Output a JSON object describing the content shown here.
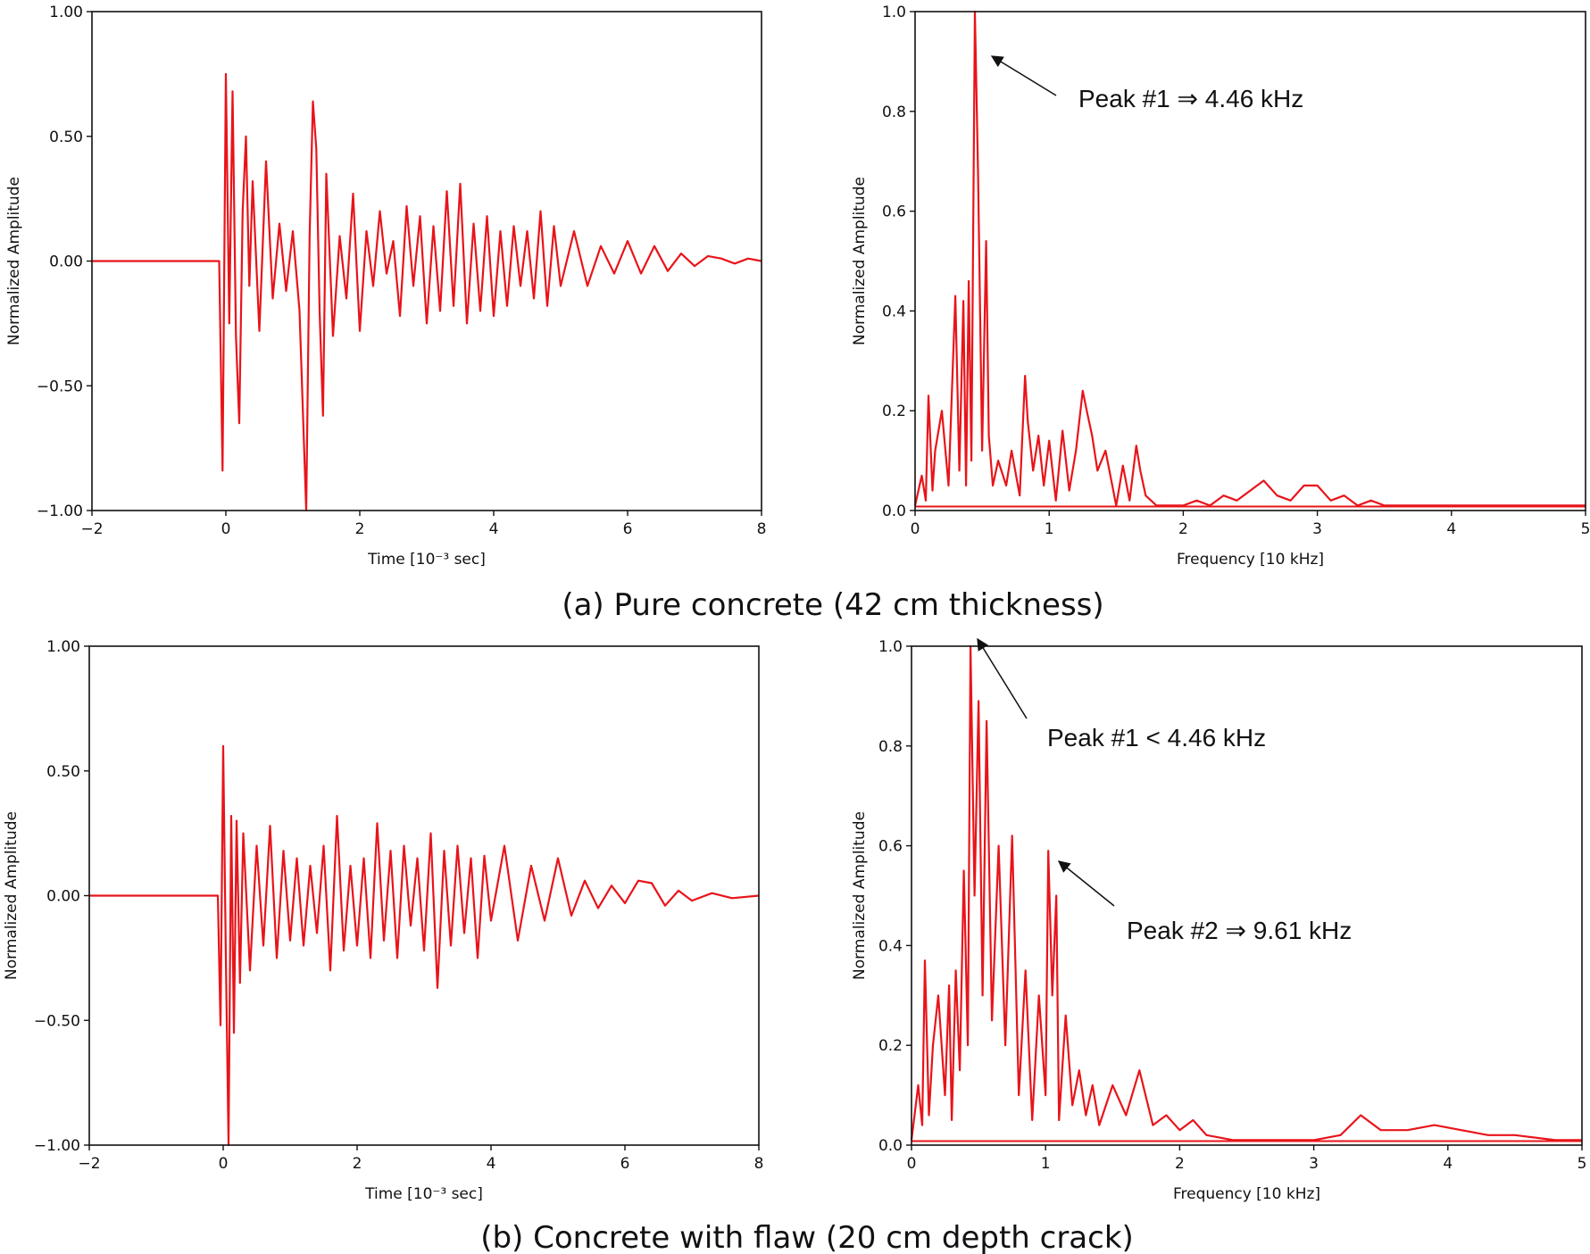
{
  "figure": {
    "caption_a": "(a) Pure concrete (42 cm thickness)",
    "caption_b": "(b) Concrete with flaw (20 cm depth crack)"
  },
  "chart_data": [
    {
      "id": "a-time",
      "type": "line",
      "xlabel": "Time [10⁻³ sec]",
      "ylabel": "Normalized Amplitude",
      "xlim": [
        -2,
        8
      ],
      "ylim": [
        -1.0,
        1.0
      ],
      "xticks": [
        -2,
        0,
        2,
        4,
        6,
        8
      ],
      "xtick_labels": [
        "−2",
        "0",
        "2",
        "4",
        "6",
        "8"
      ],
      "yticks": [
        -1.0,
        -0.5,
        0.0,
        0.5,
        1.0
      ],
      "ytick_labels": [
        "−1.00",
        "−0.50",
        "0.00",
        "0.50",
        "1.00"
      ],
      "series": [
        {
          "name": "signal",
          "color": "#e8141a",
          "x": [
            -2.0,
            -0.1,
            -0.05,
            0.0,
            0.05,
            0.1,
            0.15,
            0.2,
            0.25,
            0.3,
            0.35,
            0.4,
            0.5,
            0.6,
            0.7,
            0.8,
            0.9,
            1.0,
            1.1,
            1.2,
            1.25,
            1.3,
            1.35,
            1.4,
            1.45,
            1.5,
            1.6,
            1.7,
            1.8,
            1.9,
            2.0,
            2.1,
            2.2,
            2.3,
            2.4,
            2.5,
            2.6,
            2.7,
            2.8,
            2.9,
            3.0,
            3.1,
            3.2,
            3.3,
            3.4,
            3.5,
            3.6,
            3.7,
            3.8,
            3.9,
            4.0,
            4.1,
            4.2,
            4.3,
            4.4,
            4.5,
            4.6,
            4.7,
            4.8,
            4.9,
            5.0,
            5.2,
            5.4,
            5.6,
            5.8,
            6.0,
            6.2,
            6.4,
            6.6,
            6.8,
            7.0,
            7.2,
            7.4,
            7.6,
            7.8,
            8.0
          ],
          "values": [
            0.0,
            0.0,
            -0.84,
            0.75,
            -0.25,
            0.68,
            -0.3,
            -0.65,
            0.2,
            0.5,
            -0.1,
            0.32,
            -0.28,
            0.4,
            -0.15,
            0.15,
            -0.12,
            0.12,
            -0.2,
            -1.0,
            0.1,
            0.64,
            0.45,
            -0.2,
            -0.62,
            0.35,
            -0.3,
            0.1,
            -0.15,
            0.27,
            -0.28,
            0.12,
            -0.1,
            0.2,
            -0.05,
            0.08,
            -0.22,
            0.22,
            -0.1,
            0.18,
            -0.25,
            0.14,
            -0.2,
            0.28,
            -0.18,
            0.31,
            -0.25,
            0.15,
            -0.2,
            0.18,
            -0.22,
            0.12,
            -0.18,
            0.14,
            -0.1,
            0.12,
            -0.15,
            0.2,
            -0.18,
            0.14,
            -0.1,
            0.12,
            -0.1,
            0.06,
            -0.05,
            0.08,
            -0.05,
            0.06,
            -0.04,
            0.03,
            -0.02,
            0.02,
            0.01,
            -0.01,
            0.01,
            0.0
          ]
        }
      ]
    },
    {
      "id": "a-freq",
      "type": "line",
      "xlabel": "Frequency [10 kHz]",
      "ylabel": "Normalized Amplitude",
      "xlim": [
        0,
        5
      ],
      "ylim": [
        0.0,
        1.0
      ],
      "xticks": [
        0,
        1,
        2,
        3,
        4,
        5
      ],
      "xtick_labels": [
        "0",
        "1",
        "2",
        "3",
        "4",
        "5"
      ],
      "yticks": [
        0.0,
        0.2,
        0.4,
        0.6,
        0.8,
        1.0
      ],
      "ytick_labels": [
        "0.0",
        "0.2",
        "0.4",
        "0.6",
        "0.8",
        "1.0"
      ],
      "annotations": [
        {
          "text": "Peak #1 ⇒ 4.46 kHz",
          "x": 0.446,
          "y": 1.0
        }
      ],
      "series": [
        {
          "name": "spectrum",
          "color": "#e8141a",
          "x": [
            0.0,
            0.05,
            0.08,
            0.1,
            0.13,
            0.15,
            0.2,
            0.25,
            0.3,
            0.33,
            0.36,
            0.38,
            0.4,
            0.42,
            0.446,
            0.47,
            0.5,
            0.53,
            0.55,
            0.58,
            0.62,
            0.68,
            0.72,
            0.78,
            0.82,
            0.84,
            0.88,
            0.92,
            0.96,
            1.0,
            1.05,
            1.1,
            1.15,
            1.2,
            1.25,
            1.28,
            1.32,
            1.36,
            1.42,
            1.5,
            1.55,
            1.6,
            1.65,
            1.68,
            1.72,
            1.8,
            1.9,
            2.0,
            2.1,
            2.2,
            2.3,
            2.4,
            2.5,
            2.6,
            2.7,
            2.8,
            2.9,
            3.0,
            3.1,
            3.2,
            3.3,
            3.4,
            3.5,
            3.7,
            3.9,
            4.1,
            4.3,
            4.5,
            4.7,
            5.0
          ],
          "values": [
            0.01,
            0.07,
            0.02,
            0.23,
            0.04,
            0.12,
            0.2,
            0.05,
            0.43,
            0.08,
            0.42,
            0.05,
            0.46,
            0.1,
            1.0,
            0.67,
            0.12,
            0.54,
            0.15,
            0.05,
            0.1,
            0.05,
            0.12,
            0.03,
            0.27,
            0.18,
            0.08,
            0.15,
            0.05,
            0.14,
            0.02,
            0.16,
            0.04,
            0.12,
            0.24,
            0.2,
            0.15,
            0.08,
            0.12,
            0.01,
            0.09,
            0.02,
            0.13,
            0.08,
            0.03,
            0.01,
            0.01,
            0.01,
            0.02,
            0.01,
            0.03,
            0.02,
            0.04,
            0.06,
            0.03,
            0.02,
            0.05,
            0.05,
            0.02,
            0.03,
            0.01,
            0.02,
            0.01,
            0.01,
            0.01,
            0.01,
            0.01,
            0.01,
            0.01,
            0.01
          ]
        }
      ]
    },
    {
      "id": "b-time",
      "type": "line",
      "xlabel": "Time [10⁻³ sec]",
      "ylabel": "Normalized Amplitude",
      "xlim": [
        -2,
        8
      ],
      "ylim": [
        -1.0,
        1.0
      ],
      "xticks": [
        -2,
        0,
        2,
        4,
        6,
        8
      ],
      "xtick_labels": [
        "−2",
        "0",
        "2",
        "4",
        "6",
        "8"
      ],
      "yticks": [
        -1.0,
        -0.5,
        0.0,
        0.5,
        1.0
      ],
      "ytick_labels": [
        "−1.00",
        "−0.50",
        "0.00",
        "0.50",
        "1.00"
      ],
      "series": [
        {
          "name": "signal",
          "color": "#e8141a",
          "x": [
            -2.0,
            -0.08,
            -0.04,
            0.0,
            0.04,
            0.08,
            0.12,
            0.16,
            0.2,
            0.25,
            0.3,
            0.4,
            0.5,
            0.6,
            0.7,
            0.8,
            0.9,
            1.0,
            1.1,
            1.2,
            1.3,
            1.4,
            1.5,
            1.6,
            1.7,
            1.8,
            1.9,
            2.0,
            2.1,
            2.2,
            2.3,
            2.4,
            2.5,
            2.6,
            2.7,
            2.8,
            2.9,
            3.0,
            3.1,
            3.2,
            3.3,
            3.4,
            3.5,
            3.6,
            3.7,
            3.8,
            3.9,
            4.0,
            4.2,
            4.4,
            4.6,
            4.8,
            5.0,
            5.2,
            5.4,
            5.6,
            5.8,
            6.0,
            6.2,
            6.4,
            6.6,
            6.8,
            7.0,
            7.3,
            7.6,
            8.0
          ],
          "values": [
            0.0,
            0.0,
            -0.52,
            0.6,
            -0.25,
            -1.0,
            0.32,
            -0.55,
            0.3,
            -0.35,
            0.25,
            -0.3,
            0.2,
            -0.2,
            0.28,
            -0.25,
            0.18,
            -0.18,
            0.15,
            -0.2,
            0.12,
            -0.15,
            0.2,
            -0.3,
            0.32,
            -0.22,
            0.12,
            -0.2,
            0.15,
            -0.25,
            0.29,
            -0.18,
            0.18,
            -0.25,
            0.2,
            -0.12,
            0.15,
            -0.22,
            0.25,
            -0.37,
            0.18,
            -0.2,
            0.2,
            -0.15,
            0.15,
            -0.25,
            0.16,
            -0.1,
            0.2,
            -0.18,
            0.12,
            -0.1,
            0.15,
            -0.08,
            0.06,
            -0.05,
            0.04,
            -0.03,
            0.06,
            0.05,
            -0.04,
            0.02,
            -0.02,
            0.01,
            -0.01,
            0.0
          ]
        }
      ]
    },
    {
      "id": "b-freq",
      "type": "line",
      "xlabel": "Frequency [10 kHz]",
      "ylabel": "Normalized Amplitude",
      "xlim": [
        0,
        5
      ],
      "ylim": [
        0.0,
        1.0
      ],
      "xticks": [
        0,
        1,
        2,
        3,
        4,
        5
      ],
      "xtick_labels": [
        "0",
        "1",
        "2",
        "3",
        "4",
        "5"
      ],
      "yticks": [
        0.0,
        0.2,
        0.4,
        0.6,
        0.8,
        1.0
      ],
      "ytick_labels": [
        "0.0",
        "0.2",
        "0.4",
        "0.6",
        "0.8",
        "1.0"
      ],
      "annotations": [
        {
          "text": "Peak #1 < 4.46 kHz",
          "x": 0.44,
          "y": 1.0
        },
        {
          "text": "Peak #2 ⇒ 9.61 kHz",
          "x": 1.02,
          "y": 0.59
        }
      ],
      "series": [
        {
          "name": "spectrum",
          "color": "#e8141a",
          "x": [
            0.0,
            0.05,
            0.08,
            0.1,
            0.13,
            0.16,
            0.2,
            0.25,
            0.28,
            0.3,
            0.33,
            0.36,
            0.39,
            0.42,
            0.44,
            0.47,
            0.5,
            0.53,
            0.56,
            0.6,
            0.65,
            0.7,
            0.75,
            0.8,
            0.85,
            0.9,
            0.95,
            1.0,
            1.02,
            1.05,
            1.08,
            1.1,
            1.15,
            1.2,
            1.25,
            1.3,
            1.35,
            1.4,
            1.5,
            1.6,
            1.7,
            1.8,
            1.9,
            2.0,
            2.1,
            2.2,
            2.4,
            2.6,
            2.8,
            3.0,
            3.2,
            3.35,
            3.5,
            3.7,
            3.9,
            4.1,
            4.3,
            4.5,
            4.8,
            5.0
          ],
          "values": [
            0.01,
            0.12,
            0.04,
            0.37,
            0.06,
            0.2,
            0.3,
            0.1,
            0.32,
            0.05,
            0.35,
            0.15,
            0.55,
            0.2,
            1.0,
            0.5,
            0.89,
            0.3,
            0.85,
            0.25,
            0.6,
            0.2,
            0.62,
            0.1,
            0.35,
            0.05,
            0.3,
            0.1,
            0.59,
            0.3,
            0.5,
            0.05,
            0.26,
            0.08,
            0.15,
            0.06,
            0.12,
            0.04,
            0.12,
            0.06,
            0.15,
            0.04,
            0.06,
            0.03,
            0.05,
            0.02,
            0.01,
            0.01,
            0.01,
            0.01,
            0.02,
            0.06,
            0.03,
            0.03,
            0.04,
            0.03,
            0.02,
            0.02,
            0.01,
            0.01
          ]
        }
      ]
    }
  ]
}
